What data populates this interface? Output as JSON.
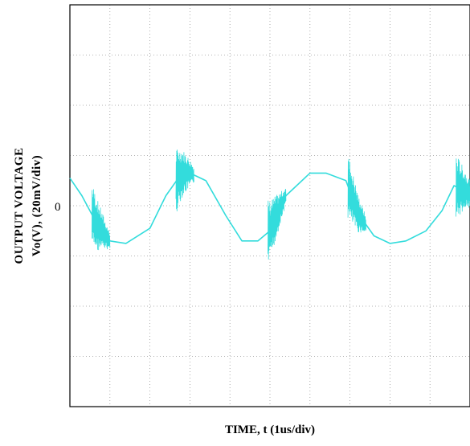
{
  "chart_data": {
    "type": "line",
    "title": "",
    "ylabel_line1": "OUTPUT VOLTAGE",
    "ylabel_line2": "Vo(V), (20mV/div)",
    "xlabel": "TIME, t (1us/div)",
    "y_tick_label": "0",
    "y_tick_value_mV": 0,
    "x_unit": "us",
    "y_unit": "mV",
    "x_per_div_us": 1,
    "y_per_div_mV": 20,
    "xlim_us": [
      0,
      10
    ],
    "ylim_mV": [
      -80,
      80
    ],
    "grid": true,
    "trace_color": "#33dcdc",
    "series": [
      {
        "name": "",
        "x": [
          0.0,
          0.3,
          0.7,
          1.0,
          1.4,
          2.0,
          2.4,
          2.8,
          3.0,
          3.4,
          3.9,
          4.3,
          4.7,
          5.0,
          5.4,
          6.0,
          6.4,
          6.9,
          7.2,
          7.6,
          8.0,
          8.4,
          8.9,
          9.3,
          9.6,
          10.0
        ],
        "y": [
          11,
          4,
          -8,
          -14,
          -15,
          -9,
          4,
          13,
          13,
          10,
          -4,
          -14,
          -14,
          -10,
          4,
          13,
          13,
          10,
          -3,
          -12,
          -15,
          -14,
          -10,
          -2,
          8,
          5
        ]
      }
    ],
    "noise_bursts_at_us": [
      0.6,
      2.7,
      5.0,
      7.0,
      9.7
    ]
  }
}
